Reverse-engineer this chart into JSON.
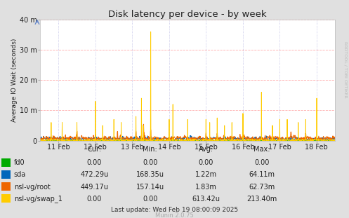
{
  "title": "Disk latency per device - by week",
  "ylabel": "Average IO Wait (seconds)",
  "background_color": "#e0e0e0",
  "plot_bg_color": "#ffffff",
  "x_tick_labels": [
    "11 Feb",
    "12 Feb",
    "13 Feb",
    "14 Feb",
    "15 Feb",
    "16 Feb",
    "17 Feb",
    "18 Feb"
  ],
  "x_tick_positions": [
    0.5,
    1.5,
    2.5,
    3.5,
    4.5,
    5.5,
    6.5,
    7.5
  ],
  "y_ticks": [
    0,
    10,
    20,
    30,
    40
  ],
  "y_tick_labels": [
    "0",
    "10 m",
    "20 m",
    "30 m",
    "40 m"
  ],
  "y_max": 40,
  "legend_entries": [
    {
      "label": "fd0",
      "color": "#00aa00"
    },
    {
      "label": "sda",
      "color": "#0066bb"
    },
    {
      "label": "nsl-vg/root",
      "color": "#ee6600"
    },
    {
      "label": "nsl-vg/swap_1",
      "color": "#ffcc00"
    }
  ],
  "table_headers": [
    "Cur:",
    "Min:",
    "Avg:",
    "Max:"
  ],
  "table_data": [
    [
      "0.00",
      "0.00",
      "0.00",
      "0.00"
    ],
    [
      "472.29u",
      "168.35u",
      "1.22m",
      "64.11m"
    ],
    [
      "449.17u",
      "157.14u",
      "1.83m",
      "62.73m"
    ],
    [
      "0.00",
      "0.00",
      "613.42u",
      "213.40m"
    ]
  ],
  "last_update": "Last update: Wed Feb 19 08:00:09 2025",
  "munin_version": "Munin 2.0.75",
  "rrdtool_label": "RRDTOOL / TOBI OETIKER"
}
